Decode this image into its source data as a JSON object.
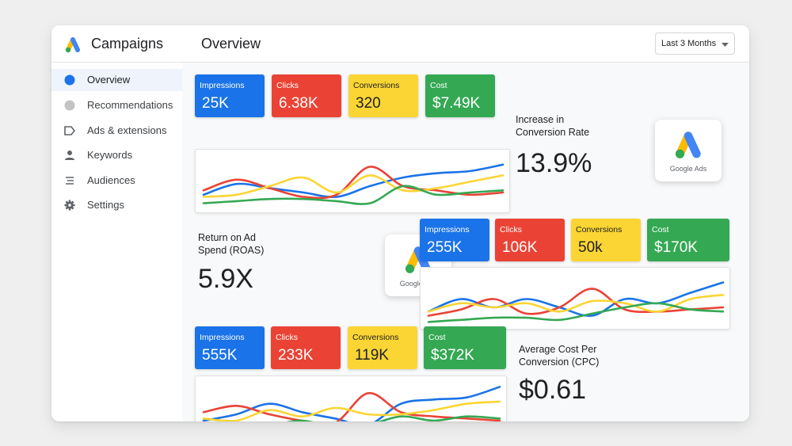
{
  "header": {
    "app_title": "Campaigns",
    "page_title": "Overview",
    "date_range": "Last 3 Months"
  },
  "sidebar": {
    "items": [
      {
        "label": "Overview",
        "icon": "circle-icon",
        "active": true
      },
      {
        "label": "Recommendations",
        "icon": "circle-icon"
      },
      {
        "label": "Ads & extensions",
        "icon": "tag-icon"
      },
      {
        "label": "Keywords",
        "icon": "person-icon"
      },
      {
        "label": "Audiences",
        "icon": "list-icon"
      },
      {
        "label": "Settings",
        "icon": "gear-icon"
      }
    ]
  },
  "brand": {
    "badge_text": "Google Ads",
    "colors": {
      "blue": "#1a73e8",
      "red": "#ea4335",
      "yellow": "#fbd533",
      "green": "#34a853"
    }
  },
  "panels": [
    {
      "metrics": [
        {
          "label": "Impressions",
          "value": "25K"
        },
        {
          "label": "Clicks",
          "value": "6.38K"
        },
        {
          "label": "Conversions",
          "value": "320"
        },
        {
          "label": "Cost",
          "value": "$7.49K"
        }
      ],
      "stat": {
        "label_line1": "Increase in",
        "label_line2": "Conversion Rate",
        "value": "13.9%"
      }
    },
    {
      "metrics": [
        {
          "label": "Impressions",
          "value": "255K"
        },
        {
          "label": "Clicks",
          "value": "106K"
        },
        {
          "label": "Conversions",
          "value": "50k"
        },
        {
          "label": "Cost",
          "value": "$170K"
        }
      ],
      "stat": {
        "label_line1": "Return on Ad",
        "label_line2": "Spend (ROAS)",
        "value": "5.9X"
      }
    },
    {
      "metrics": [
        {
          "label": "Impressions",
          "value": "555K"
        },
        {
          "label": "Clicks",
          "value": "233K"
        },
        {
          "label": "Conversions",
          "value": "119K"
        },
        {
          "label": "Cost",
          "value": "$372K"
        }
      ],
      "stat": {
        "label_line1": "Average Cost Per",
        "label_line2": "Conversion (CPC)",
        "value": "$0.61"
      }
    }
  ],
  "chart_data": [
    {
      "type": "line",
      "series": [
        {
          "color": "#1a73e8",
          "values": [
            3,
            5.5,
            4.5,
            3.5,
            2.5,
            5,
            7,
            8,
            8.5,
            10
          ]
        },
        {
          "color": "#ea4335",
          "values": [
            4,
            6.5,
            4.5,
            2.5,
            3,
            9.5,
            5,
            4,
            3,
            3.5
          ]
        },
        {
          "color": "#fbd533",
          "values": [
            2.5,
            3,
            5,
            7,
            3.5,
            7.5,
            4,
            4.5,
            6,
            7.5
          ]
        },
        {
          "color": "#34a853",
          "values": [
            1,
            1.5,
            2,
            2,
            1.5,
            1,
            5,
            3,
            3.5,
            4
          ]
        }
      ],
      "ylim": [
        0,
        12
      ]
    },
    {
      "type": "line",
      "series": [
        {
          "color": "#1a73e8",
          "values": [
            3,
            6,
            4,
            6,
            4,
            2,
            6,
            5,
            7.5,
            10
          ]
        },
        {
          "color": "#ea4335",
          "values": [
            2,
            3.5,
            6,
            2.5,
            4,
            8.5,
            3.5,
            3,
            3.5,
            4
          ]
        },
        {
          "color": "#fbd533",
          "values": [
            3,
            5,
            4,
            5,
            3,
            5.5,
            5,
            3,
            6,
            7
          ]
        },
        {
          "color": "#34a853",
          "values": [
            0.5,
            1,
            1.5,
            1.5,
            1,
            2.5,
            4,
            5,
            3.5,
            3
          ]
        }
      ],
      "ylim": [
        0,
        12
      ]
    },
    {
      "type": "line",
      "series": [
        {
          "color": "#1a73e8",
          "values": [
            3,
            4.5,
            7,
            5,
            3.5,
            2,
            7,
            8,
            8.5,
            11
          ]
        },
        {
          "color": "#ea4335",
          "values": [
            5,
            6.5,
            4.5,
            3,
            2.5,
            9.5,
            5,
            4,
            3.5,
            3
          ]
        },
        {
          "color": "#fbd533",
          "values": [
            3.5,
            3,
            5.5,
            4,
            6,
            4.5,
            4.5,
            5.5,
            7,
            7.5
          ]
        },
        {
          "color": "#34a853",
          "values": [
            2,
            2.5,
            2,
            3,
            1.5,
            2,
            4,
            3,
            4,
            3.5
          ]
        }
      ],
      "ylim": [
        0,
        12
      ]
    }
  ]
}
